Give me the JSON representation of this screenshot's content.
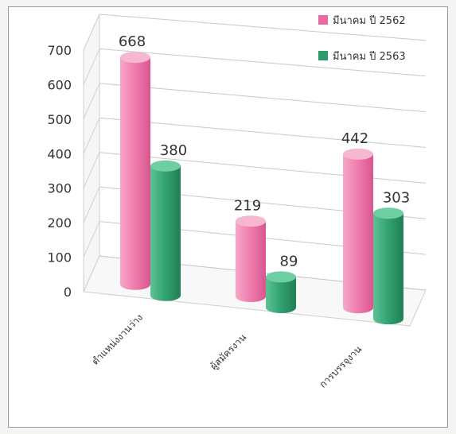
{
  "chart_data": {
    "type": "bar",
    "categories": [
      "ตำแหน่งงานว่าง",
      "ผู้สมัครงาน",
      "การบรรจุงาน"
    ],
    "series": [
      {
        "name": "มีนาคม ปี 2562",
        "values": [
          668,
          219,
          442
        ],
        "color": "#e86aa0"
      },
      {
        "name": "มีนาคม ปี 2563",
        "values": [
          380,
          89,
          303
        ],
        "color": "#2e9a6c"
      }
    ],
    "ylim": [
      0,
      700
    ],
    "yticks": [
      "700",
      "600",
      "500",
      "400",
      "300",
      "200",
      "100",
      "0"
    ],
    "grid": true,
    "legend_position": "top-right",
    "style": "3d-cylinder"
  }
}
